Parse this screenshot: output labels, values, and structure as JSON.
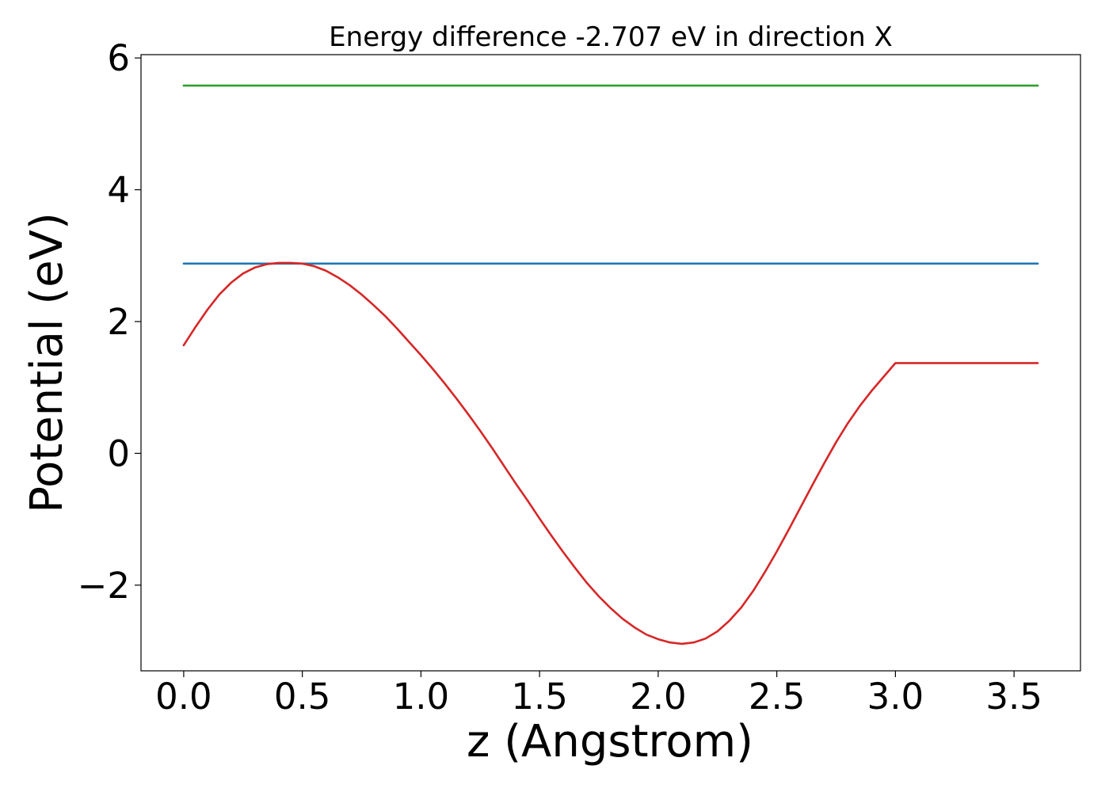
{
  "chart_data": {
    "type": "line",
    "title": "Energy difference -2.707 eV in direction X",
    "xlabel": "z (Angstrom)",
    "ylabel": "Potential (eV)",
    "xlim": [
      -0.18,
      3.78
    ],
    "ylim": [
      -3.3,
      6.05
    ],
    "xticks": [
      0.0,
      0.5,
      1.0,
      1.5,
      2.0,
      2.5,
      3.0,
      3.5
    ],
    "xtick_labels": [
      "0.0",
      "0.5",
      "1.0",
      "1.5",
      "2.0",
      "2.5",
      "3.0",
      "3.5"
    ],
    "yticks": [
      -2,
      0,
      2,
      4,
      6
    ],
    "ytick_labels": [
      "−2",
      "0",
      "2",
      "4",
      "6"
    ],
    "grid": false,
    "legend": "none",
    "series": [
      {
        "color": "#2ca02c",
        "x": [
          0.0,
          3.6
        ],
        "y": [
          5.58,
          5.58
        ]
      },
      {
        "color": "#1f77b4",
        "x": [
          0.0,
          3.6
        ],
        "y": [
          2.88,
          2.88
        ]
      },
      {
        "color": "#d62728",
        "x": [
          0.0,
          0.05,
          0.1,
          0.15,
          0.2,
          0.25,
          0.3,
          0.35,
          0.4,
          0.45,
          0.5,
          0.55,
          0.6,
          0.65,
          0.7,
          0.75,
          0.8,
          0.85,
          0.9,
          0.95,
          1.0,
          1.05,
          1.1,
          1.15,
          1.2,
          1.25,
          1.3,
          1.35,
          1.4,
          1.45,
          1.5,
          1.55,
          1.6,
          1.65,
          1.7,
          1.75,
          1.8,
          1.85,
          1.9,
          1.95,
          2.0,
          2.05,
          2.1,
          2.15,
          2.2,
          2.25,
          2.3,
          2.35,
          2.4,
          2.45,
          2.5,
          2.55,
          2.6,
          2.65,
          2.7,
          2.75,
          2.8,
          2.85,
          2.9,
          2.95,
          3.0,
          3.05,
          3.1,
          3.15,
          3.2,
          3.25,
          3.3,
          3.35,
          3.4,
          3.45,
          3.5,
          3.55,
          3.6
        ],
        "y": [
          1.64,
          1.92,
          2.18,
          2.41,
          2.59,
          2.73,
          2.82,
          2.87,
          2.89,
          2.89,
          2.88,
          2.84,
          2.77,
          2.67,
          2.55,
          2.41,
          2.25,
          2.08,
          1.89,
          1.69,
          1.49,
          1.28,
          1.06,
          0.83,
          0.59,
          0.34,
          0.08,
          -0.19,
          -0.46,
          -0.72,
          -0.99,
          -1.25,
          -1.5,
          -1.74,
          -1.97,
          -2.17,
          -2.35,
          -2.51,
          -2.64,
          -2.75,
          -2.82,
          -2.87,
          -2.89,
          -2.87,
          -2.81,
          -2.7,
          -2.54,
          -2.34,
          -2.09,
          -1.8,
          -1.49,
          -1.16,
          -0.82,
          -0.48,
          -0.15,
          0.17,
          0.46,
          0.72,
          0.95,
          1.16,
          1.37,
          1.37,
          1.37,
          1.37,
          1.37,
          1.37,
          1.37,
          1.37,
          1.37,
          1.37,
          1.37,
          1.37,
          1.37
        ]
      }
    ]
  }
}
